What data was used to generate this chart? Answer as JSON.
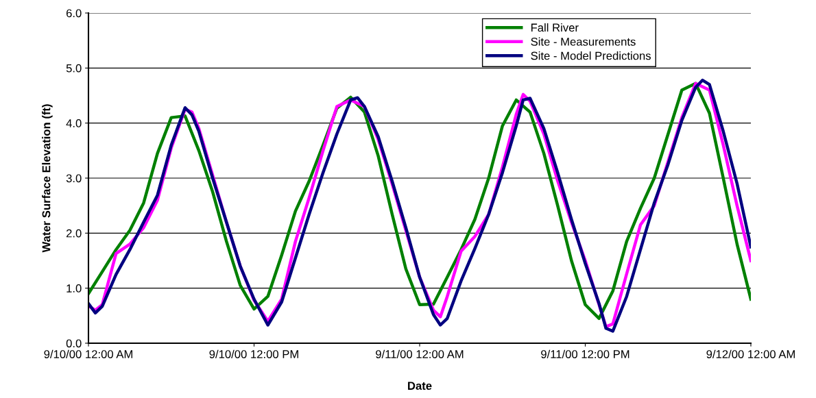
{
  "chart_data": {
    "type": "line",
    "xlabel": "Date",
    "ylabel": "Water Surface Elevation (ft)",
    "xlim": [
      "2000-09-10T00:00",
      "2000-09-12T00:00"
    ],
    "xticks": [
      {
        "value": "2000-09-10T00:00",
        "label": "9/10/00 12:00 AM"
      },
      {
        "value": "2000-09-10T12:00",
        "label": "9/10/00 12:00 PM"
      },
      {
        "value": "2000-09-11T00:00",
        "label": "9/11/00 12:00 AM"
      },
      {
        "value": "2000-09-11T12:00",
        "label": "9/11/00 12:00 PM"
      },
      {
        "value": "2000-09-12T00:00",
        "label": "9/12/00 12:00 AM"
      }
    ],
    "ylim": [
      0,
      6
    ],
    "yticks": [
      {
        "value": 0,
        "label": "0.0"
      },
      {
        "value": 1,
        "label": "1.0"
      },
      {
        "value": 2,
        "label": "2.0"
      },
      {
        "value": 3,
        "label": "3.0"
      },
      {
        "value": 4,
        "label": "4.0"
      },
      {
        "value": 5,
        "label": "5.0"
      },
      {
        "value": 6,
        "label": "6.0"
      }
    ],
    "grid": "y",
    "legend": "top right",
    "marker": "none",
    "line_style": "solid",
    "series": [
      {
        "name": "Fall River",
        "color": "#008000",
        "x": [
          "2000-09-10T00:00",
          "2000-09-10T01:00",
          "2000-09-10T02:00",
          "2000-09-10T03:00",
          "2000-09-10T04:00",
          "2000-09-10T05:00",
          "2000-09-10T06:00",
          "2000-09-10T07:00",
          "2000-09-10T08:00",
          "2000-09-10T09:00",
          "2000-09-10T10:00",
          "2000-09-10T11:00",
          "2000-09-10T12:00",
          "2000-09-10T13:00",
          "2000-09-10T14:00",
          "2000-09-10T15:00",
          "2000-09-10T16:00",
          "2000-09-10T17:00",
          "2000-09-10T18:00",
          "2000-09-10T19:00",
          "2000-09-10T20:00",
          "2000-09-10T21:00",
          "2000-09-10T22:00",
          "2000-09-10T23:00",
          "2000-09-11T00:00",
          "2000-09-11T01:00",
          "2000-09-11T02:00",
          "2000-09-11T03:00",
          "2000-09-11T04:00",
          "2000-09-11T05:00",
          "2000-09-11T06:00",
          "2000-09-11T07:00",
          "2000-09-11T08:00",
          "2000-09-11T09:00",
          "2000-09-11T10:00",
          "2000-09-11T11:00",
          "2000-09-11T12:00",
          "2000-09-11T13:00",
          "2000-09-11T14:00",
          "2000-09-11T15:00",
          "2000-09-11T16:00",
          "2000-09-11T17:00",
          "2000-09-11T18:00",
          "2000-09-11T19:00",
          "2000-09-11T20:00",
          "2000-09-11T21:00",
          "2000-09-11T22:00",
          "2000-09-11T23:00",
          "2000-09-12T00:00"
        ],
        "values": [
          0.9,
          1.3,
          1.7,
          2.05,
          2.55,
          3.45,
          4.1,
          4.13,
          3.5,
          2.75,
          1.85,
          1.05,
          0.62,
          0.85,
          1.6,
          2.4,
          2.95,
          3.6,
          4.27,
          4.47,
          4.2,
          3.4,
          2.35,
          1.35,
          0.7,
          0.71,
          1.2,
          1.7,
          2.25,
          3.0,
          3.95,
          4.42,
          4.2,
          3.45,
          2.5,
          1.5,
          0.7,
          0.45,
          0.95,
          1.85,
          2.45,
          3.0,
          3.8,
          4.6,
          4.72,
          4.18,
          3.0,
          1.8,
          0.8
        ]
      },
      {
        "name": "Site - Measurements",
        "color": "#ff00ff",
        "x": [
          "2000-09-10T00:00",
          "2000-09-10T00:30",
          "2000-09-10T01:00",
          "2000-09-10T02:00",
          "2000-09-10T03:00",
          "2000-09-10T04:00",
          "2000-09-10T05:00",
          "2000-09-10T06:00",
          "2000-09-10T07:00",
          "2000-09-10T07:30",
          "2000-09-10T08:00",
          "2000-09-10T09:00",
          "2000-09-10T10:00",
          "2000-09-10T11:00",
          "2000-09-10T12:00",
          "2000-09-10T13:00",
          "2000-09-10T14:00",
          "2000-09-10T15:00",
          "2000-09-10T16:00",
          "2000-09-10T17:00",
          "2000-09-10T18:00",
          "2000-09-10T19:00",
          "2000-09-10T20:00",
          "2000-09-10T21:00",
          "2000-09-10T22:00",
          "2000-09-10T23:00",
          "2000-09-11T00:00",
          "2000-09-11T01:00",
          "2000-09-11T01:30",
          "2000-09-11T02:00",
          "2000-09-11T03:00",
          "2000-09-11T04:00",
          "2000-09-11T05:00",
          "2000-09-11T06:00",
          "2000-09-11T07:00",
          "2000-09-11T07:30",
          "2000-09-11T08:00",
          "2000-09-11T09:00",
          "2000-09-11T10:00",
          "2000-09-11T11:00",
          "2000-09-11T12:00",
          "2000-09-11T13:00",
          "2000-09-11T13:30",
          "2000-09-11T14:00",
          "2000-09-11T15:00",
          "2000-09-11T16:00",
          "2000-09-11T17:00",
          "2000-09-11T18:00",
          "2000-09-11T19:00",
          "2000-09-11T20:00",
          "2000-09-11T21:00",
          "2000-09-11T22:00",
          "2000-09-11T23:00",
          "2000-09-12T00:00"
        ],
        "values": [
          0.68,
          0.6,
          0.7,
          1.63,
          1.8,
          2.1,
          2.6,
          3.55,
          4.25,
          4.2,
          3.9,
          3.05,
          2.2,
          1.4,
          0.78,
          0.4,
          0.8,
          1.85,
          2.65,
          3.5,
          4.3,
          4.42,
          4.3,
          3.7,
          2.9,
          2.05,
          1.2,
          0.6,
          0.48,
          0.85,
          1.67,
          1.94,
          2.34,
          3.2,
          4.16,
          4.52,
          4.4,
          3.8,
          2.95,
          2.2,
          1.5,
          0.7,
          0.3,
          0.35,
          1.26,
          2.15,
          2.5,
          3.3,
          4.1,
          4.72,
          4.6,
          3.6,
          2.5,
          1.5
        ]
      },
      {
        "name": "Site - Model Predictions",
        "color": "#000080",
        "x": [
          "2000-09-10T00:00",
          "2000-09-10T00:30",
          "2000-09-10T01:00",
          "2000-09-10T02:00",
          "2000-09-10T03:00",
          "2000-09-10T04:00",
          "2000-09-10T05:00",
          "2000-09-10T06:00",
          "2000-09-10T07:00",
          "2000-09-10T07:30",
          "2000-09-10T08:00",
          "2000-09-10T09:00",
          "2000-09-10T10:00",
          "2000-09-10T11:00",
          "2000-09-10T12:00",
          "2000-09-10T13:00",
          "2000-09-10T14:00",
          "2000-09-10T15:00",
          "2000-09-10T16:00",
          "2000-09-10T17:00",
          "2000-09-10T18:00",
          "2000-09-10T19:00",
          "2000-09-10T19:30",
          "2000-09-10T20:00",
          "2000-09-10T21:00",
          "2000-09-10T22:00",
          "2000-09-10T23:00",
          "2000-09-11T00:00",
          "2000-09-11T01:00",
          "2000-09-11T01:30",
          "2000-09-11T02:00",
          "2000-09-11T03:00",
          "2000-09-11T04:00",
          "2000-09-11T05:00",
          "2000-09-11T06:00",
          "2000-09-11T07:00",
          "2000-09-11T07:30",
          "2000-09-11T08:00",
          "2000-09-11T09:00",
          "2000-09-11T10:00",
          "2000-09-11T11:00",
          "2000-09-11T12:00",
          "2000-09-11T13:00",
          "2000-09-11T13:30",
          "2000-09-11T14:00",
          "2000-09-11T15:00",
          "2000-09-11T16:00",
          "2000-09-11T17:00",
          "2000-09-11T18:00",
          "2000-09-11T19:00",
          "2000-09-11T20:00",
          "2000-09-11T20:30",
          "2000-09-11T21:00",
          "2000-09-11T22:00",
          "2000-09-11T23:00",
          "2000-09-12T00:00"
        ],
        "values": [
          0.72,
          0.55,
          0.67,
          1.25,
          1.7,
          2.2,
          2.69,
          3.6,
          4.28,
          4.15,
          3.85,
          3.0,
          2.2,
          1.4,
          0.8,
          0.33,
          0.75,
          1.55,
          2.35,
          3.1,
          3.8,
          4.42,
          4.46,
          4.3,
          3.75,
          2.95,
          2.1,
          1.2,
          0.52,
          0.33,
          0.45,
          1.13,
          1.72,
          2.34,
          3.1,
          3.95,
          4.42,
          4.45,
          3.9,
          3.1,
          2.25,
          1.45,
          0.72,
          0.27,
          0.22,
          0.85,
          1.7,
          2.55,
          3.25,
          4.05,
          4.65,
          4.78,
          4.7,
          3.85,
          2.9,
          1.75
        ]
      }
    ]
  }
}
